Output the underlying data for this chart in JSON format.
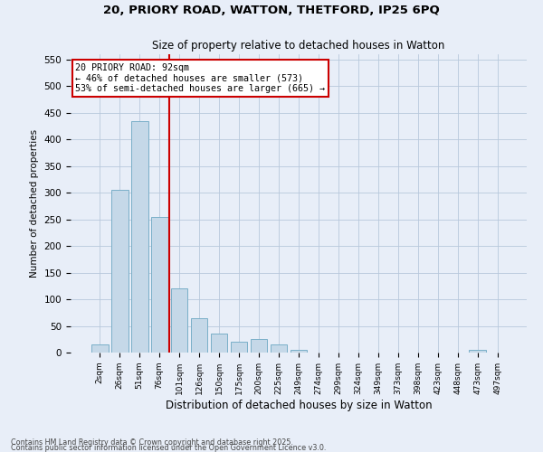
{
  "title1": "20, PRIORY ROAD, WATTON, THETFORD, IP25 6PQ",
  "title2": "Size of property relative to detached houses in Watton",
  "xlabel": "Distribution of detached houses by size in Watton",
  "ylabel": "Number of detached properties",
  "footer1": "Contains HM Land Registry data © Crown copyright and database right 2025.",
  "footer2": "Contains public sector information licensed under the Open Government Licence v3.0.",
  "annotation_line1": "20 PRIORY ROAD: 92sqm",
  "annotation_line2": "← 46% of detached houses are smaller (573)",
  "annotation_line3": "53% of semi-detached houses are larger (665) →",
  "bar_color": "#c5d8e8",
  "bar_edge_color": "#7aafc8",
  "red_line_color": "#cc0000",
  "annotation_box_color": "#cc0000",
  "background_color": "#e8eef8",
  "grid_color": "#b8c8dc",
  "categories": [
    "2sqm",
    "26sqm",
    "51sqm",
    "76sqm",
    "101sqm",
    "126sqm",
    "150sqm",
    "175sqm",
    "200sqm",
    "225sqm",
    "249sqm",
    "274sqm",
    "299sqm",
    "324sqm",
    "349sqm",
    "373sqm",
    "398sqm",
    "423sqm",
    "448sqm",
    "473sqm",
    "497sqm"
  ],
  "values": [
    15,
    305,
    435,
    255,
    120,
    65,
    35,
    20,
    25,
    15,
    5,
    0,
    0,
    0,
    0,
    0,
    0,
    0,
    0,
    5,
    0
  ],
  "red_line_x": 3.5,
  "ylim": [
    0,
    560
  ],
  "yticks": [
    0,
    50,
    100,
    150,
    200,
    250,
    300,
    350,
    400,
    450,
    500,
    550
  ]
}
